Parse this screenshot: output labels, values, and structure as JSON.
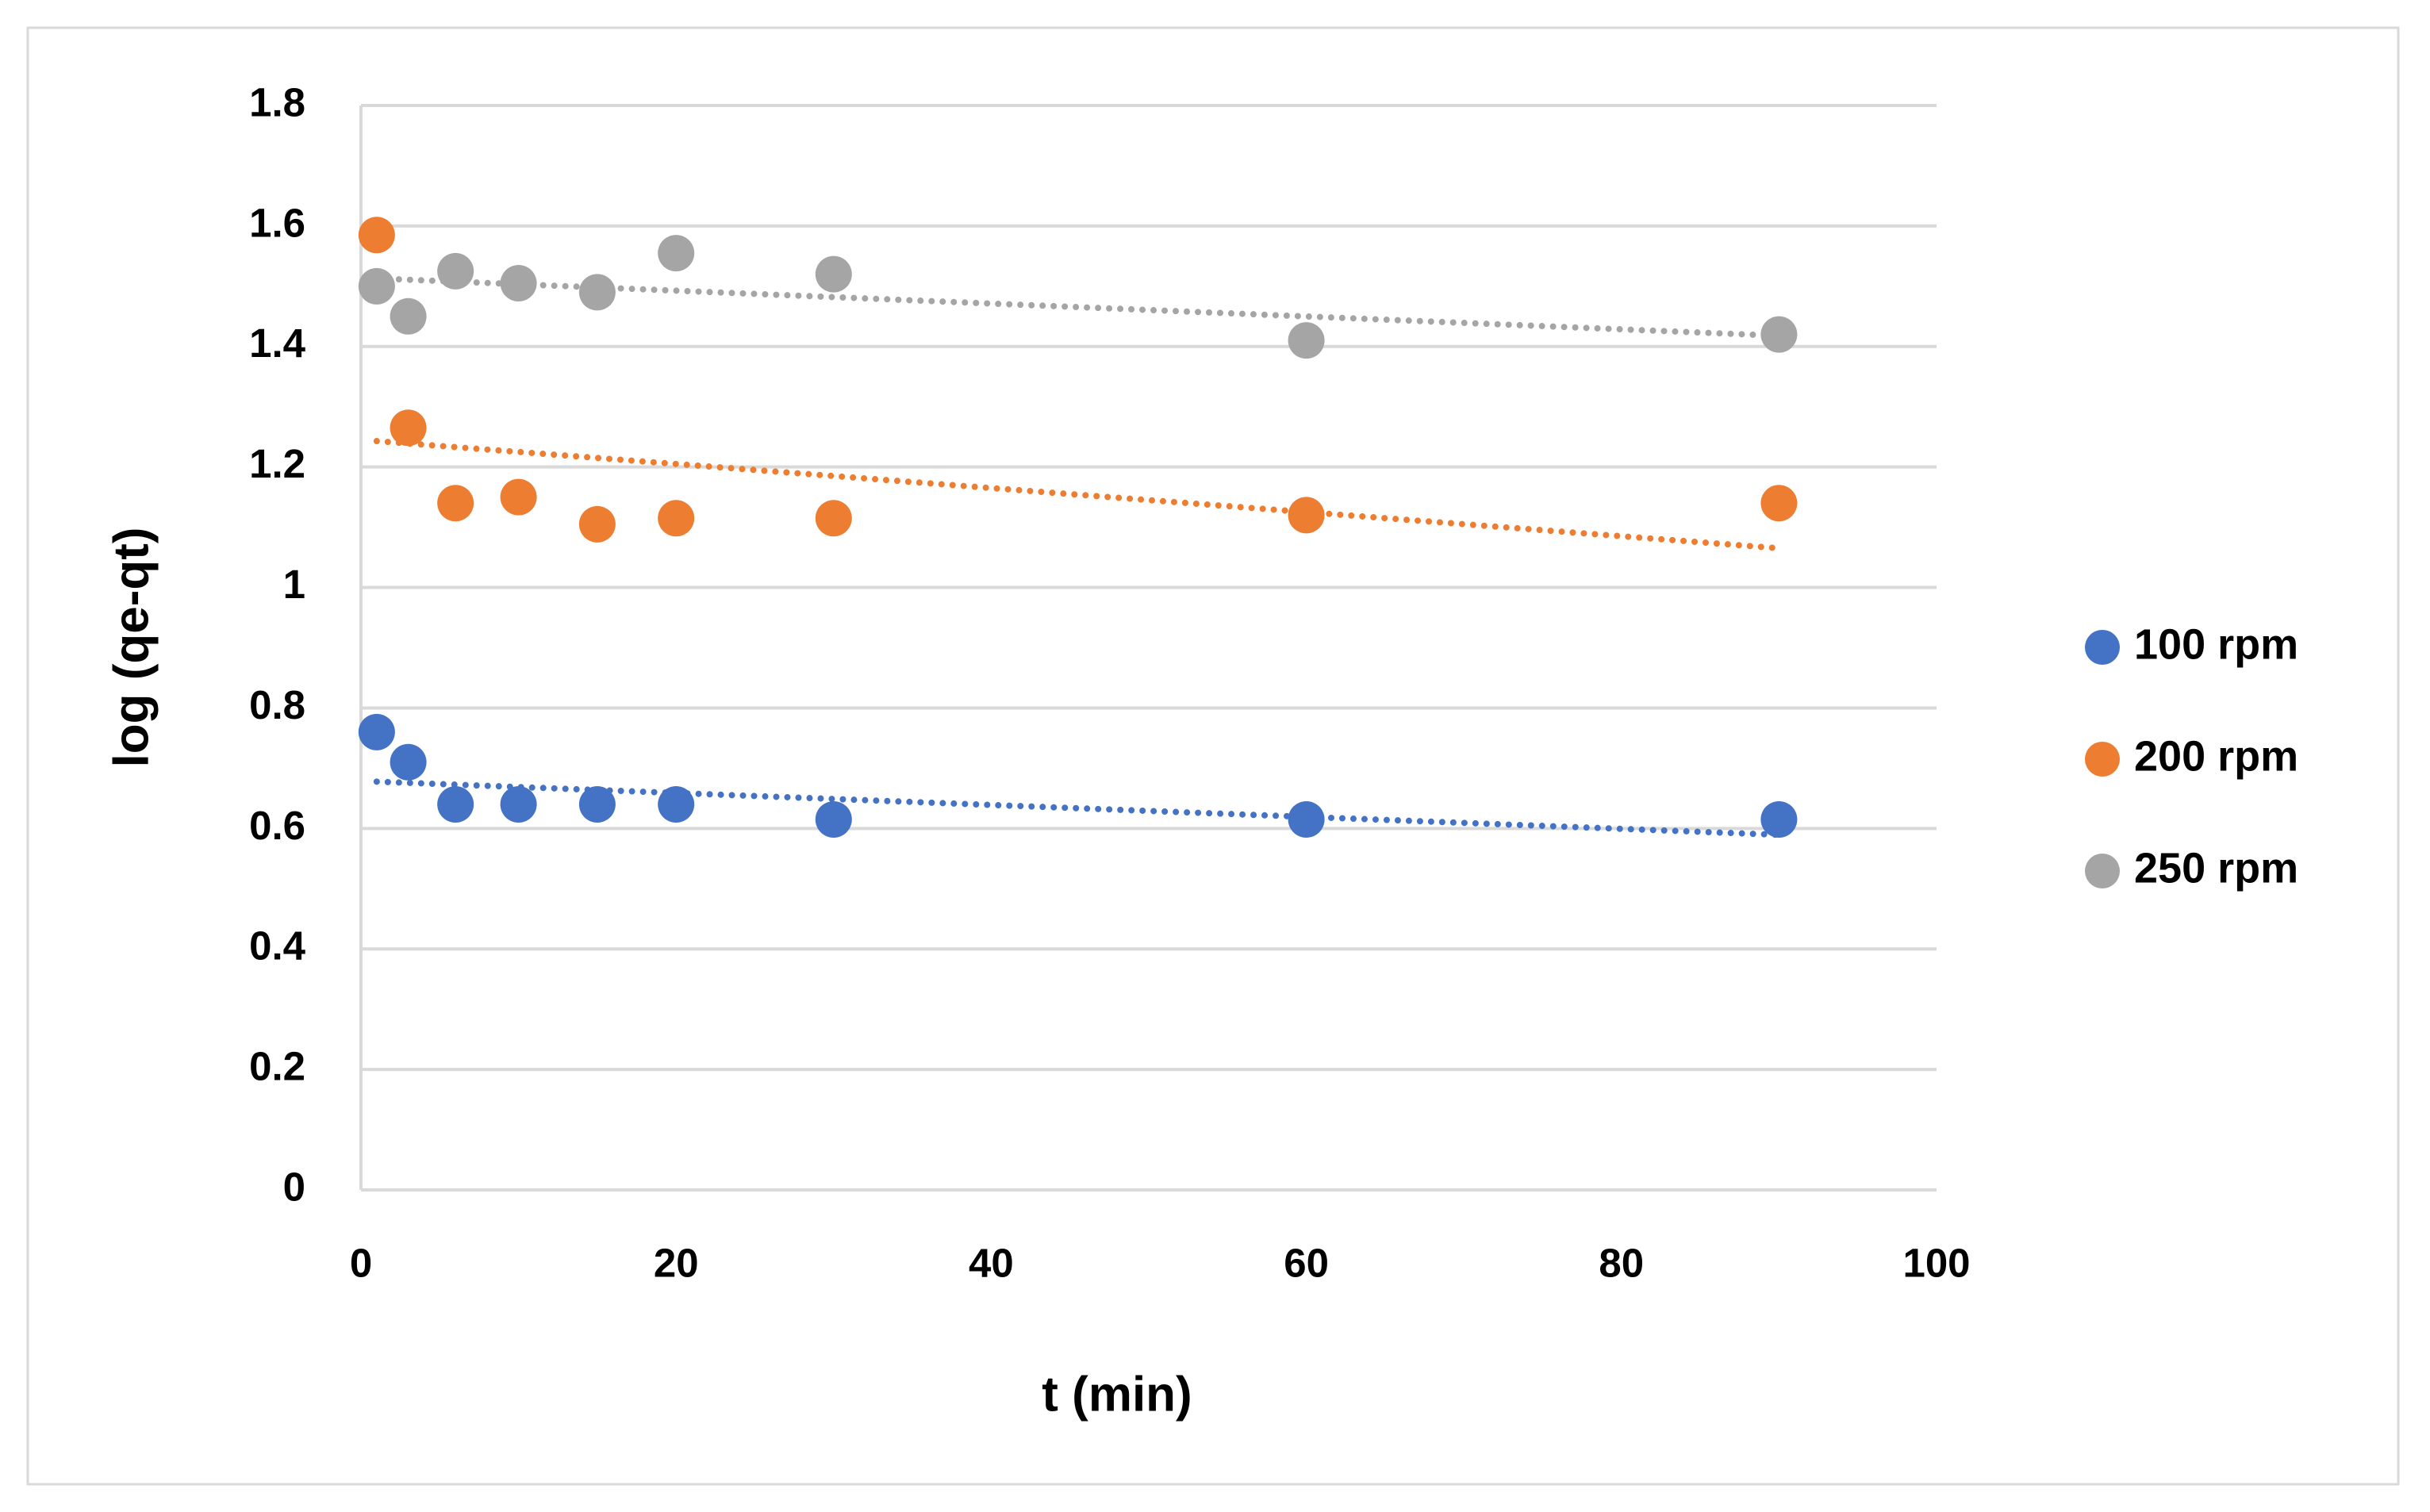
{
  "chart_data": {
    "type": "scatter",
    "x_label": "t (min)",
    "y_label": "log (qe-qt)",
    "x": [
      1,
      3,
      6,
      10,
      15,
      20,
      30,
      60,
      90
    ],
    "series": [
      {
        "name": "100 rpm",
        "color": "#4472c4",
        "values": [
          0.76,
          0.71,
          0.64,
          0.64,
          0.64,
          0.64,
          0.615,
          0.615,
          0.615
        ]
      },
      {
        "name": "200 rpm",
        "color": "#ed7d31",
        "values": [
          1.585,
          1.265,
          1.14,
          1.15,
          1.105,
          1.115,
          1.115,
          1.12,
          1.14
        ]
      },
      {
        "name": "250 rpm",
        "color": "#a5a5a5",
        "values": [
          1.5,
          1.45,
          1.525,
          1.505,
          1.49,
          1.555,
          1.52,
          1.41,
          1.42
        ]
      }
    ],
    "xlim": [
      0,
      100
    ],
    "xticks": [
      0,
      20,
      40,
      60,
      80,
      100
    ],
    "ylim": [
      0,
      1.8
    ],
    "yticks": [
      0,
      0.2,
      0.4,
      0.6,
      0.8,
      1,
      1.2,
      1.4,
      1.6,
      1.8
    ],
    "grid": true,
    "trendline": "linear",
    "legend": "right"
  }
}
